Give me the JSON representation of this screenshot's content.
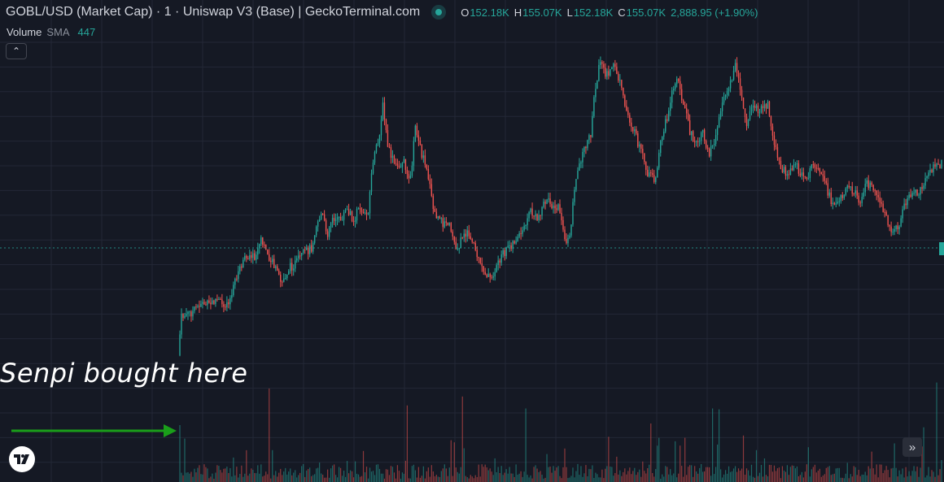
{
  "header": {
    "title": "GOBL/USD (Market Cap) · 1 · Uniswap V3 (Base) | GeckoTerminal.com",
    "ohlc": {
      "o_label": "O",
      "o_value": "152.18K",
      "h_label": "H",
      "h_value": "155.07K",
      "l_label": "L",
      "l_value": "152.18K",
      "c_label": "C",
      "c_value": "155.07K",
      "change": "2,888.95 (+1.90%)"
    }
  },
  "volume_legend": {
    "label": "Volume",
    "sma_label": "SMA",
    "value": "447"
  },
  "collapse_button": {
    "glyph": "⌃"
  },
  "annotation": {
    "text": "Senpi bought here",
    "arrow_color": "#1a9e1a"
  },
  "scroll_button": {
    "glyph": "»"
  },
  "colors": {
    "background": "#151924",
    "up": "#26a69a",
    "down": "#ef5350",
    "grid": "#232836",
    "text": "#d1d4dc"
  },
  "chart_data": {
    "type": "candlestick",
    "symbol": "GOBL/USD (Market Cap)",
    "interval": "1",
    "last_close": "155.07K",
    "series": [
      {
        "name": "Market Cap",
        "path_points": [
          [
            0.0,
            0.98
          ],
          [
            0.004,
            0.87
          ],
          [
            0.01,
            0.86
          ],
          [
            0.02,
            0.85
          ],
          [
            0.03,
            0.82
          ],
          [
            0.04,
            0.83
          ],
          [
            0.05,
            0.81
          ],
          [
            0.06,
            0.83
          ],
          [
            0.07,
            0.8
          ],
          [
            0.075,
            0.74
          ],
          [
            0.085,
            0.69
          ],
          [
            0.095,
            0.66
          ],
          [
            0.1,
            0.68
          ],
          [
            0.108,
            0.62
          ],
          [
            0.115,
            0.65
          ],
          [
            0.125,
            0.7
          ],
          [
            0.135,
            0.76
          ],
          [
            0.145,
            0.71
          ],
          [
            0.155,
            0.69
          ],
          [
            0.165,
            0.66
          ],
          [
            0.175,
            0.64
          ],
          [
            0.18,
            0.57
          ],
          [
            0.188,
            0.53
          ],
          [
            0.195,
            0.6
          ],
          [
            0.202,
            0.54
          ],
          [
            0.212,
            0.555
          ],
          [
            0.22,
            0.52
          ],
          [
            0.23,
            0.55
          ],
          [
            0.238,
            0.51
          ],
          [
            0.248,
            0.54
          ],
          [
            0.255,
            0.36
          ],
          [
            0.262,
            0.3
          ],
          [
            0.268,
            0.18
          ],
          [
            0.275,
            0.32
          ],
          [
            0.285,
            0.38
          ],
          [
            0.295,
            0.36
          ],
          [
            0.305,
            0.42
          ],
          [
            0.31,
            0.23
          ],
          [
            0.318,
            0.33
          ],
          [
            0.325,
            0.37
          ],
          [
            0.335,
            0.53
          ],
          [
            0.345,
            0.56
          ],
          [
            0.355,
            0.57
          ],
          [
            0.365,
            0.65
          ],
          [
            0.375,
            0.59
          ],
          [
            0.385,
            0.61
          ],
          [
            0.395,
            0.7
          ],
          [
            0.405,
            0.73
          ],
          [
            0.41,
            0.75
          ],
          [
            0.42,
            0.68
          ],
          [
            0.43,
            0.65
          ],
          [
            0.44,
            0.62
          ],
          [
            0.45,
            0.6
          ],
          [
            0.46,
            0.52
          ],
          [
            0.47,
            0.55
          ],
          [
            0.48,
            0.49
          ],
          [
            0.49,
            0.5
          ],
          [
            0.5,
            0.52
          ],
          [
            0.505,
            0.6
          ],
          [
            0.512,
            0.63
          ],
          [
            0.52,
            0.42
          ],
          [
            0.53,
            0.33
          ],
          [
            0.54,
            0.28
          ],
          [
            0.545,
            0.15
          ],
          [
            0.552,
            0.04
          ],
          [
            0.56,
            0.08
          ],
          [
            0.57,
            0.05
          ],
          [
            0.578,
            0.1
          ],
          [
            0.585,
            0.18
          ],
          [
            0.595,
            0.25
          ],
          [
            0.605,
            0.32
          ],
          [
            0.615,
            0.4
          ],
          [
            0.625,
            0.42
          ],
          [
            0.632,
            0.3
          ],
          [
            0.64,
            0.22
          ],
          [
            0.648,
            0.12
          ],
          [
            0.655,
            0.1
          ],
          [
            0.662,
            0.18
          ],
          [
            0.67,
            0.26
          ],
          [
            0.678,
            0.31
          ],
          [
            0.688,
            0.27
          ],
          [
            0.695,
            0.34
          ],
          [
            0.703,
            0.29
          ],
          [
            0.712,
            0.18
          ],
          [
            0.72,
            0.12
          ],
          [
            0.73,
            0.05
          ],
          [
            0.738,
            0.15
          ],
          [
            0.745,
            0.25
          ],
          [
            0.752,
            0.18
          ],
          [
            0.762,
            0.2
          ],
          [
            0.772,
            0.17
          ],
          [
            0.78,
            0.3
          ],
          [
            0.79,
            0.39
          ],
          [
            0.8,
            0.4
          ],
          [
            0.81,
            0.37
          ],
          [
            0.82,
            0.43
          ],
          [
            0.83,
            0.38
          ],
          [
            0.84,
            0.4
          ],
          [
            0.848,
            0.44
          ],
          [
            0.855,
            0.49
          ],
          [
            0.865,
            0.5
          ],
          [
            0.875,
            0.44
          ],
          [
            0.885,
            0.46
          ],
          [
            0.893,
            0.49
          ],
          [
            0.9,
            0.43
          ],
          [
            0.91,
            0.44
          ],
          [
            0.918,
            0.47
          ],
          [
            0.926,
            0.54
          ],
          [
            0.935,
            0.6
          ],
          [
            0.945,
            0.56
          ],
          [
            0.952,
            0.5
          ],
          [
            0.96,
            0.46
          ],
          [
            0.97,
            0.47
          ],
          [
            0.978,
            0.43
          ],
          [
            0.986,
            0.39
          ],
          [
            1.0,
            0.37
          ]
        ]
      }
    ],
    "xlabel": "",
    "ylabel": "",
    "grid": true,
    "legend": "top-left"
  }
}
